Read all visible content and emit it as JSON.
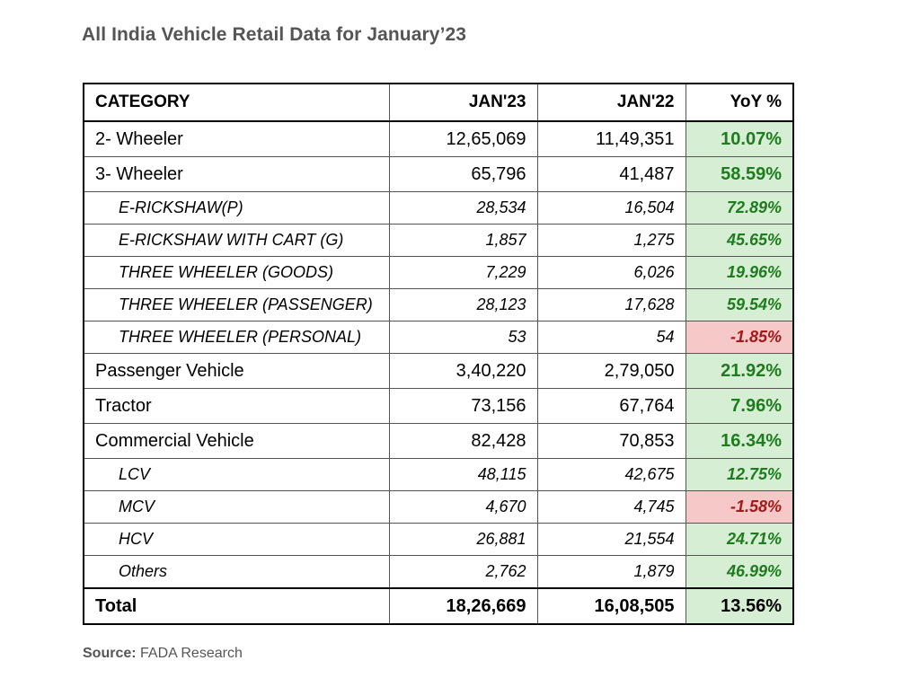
{
  "title": "All India Vehicle Retail Data for January’23",
  "header": {
    "category": "CATEGORY",
    "jan23": "JAN'23",
    "jan22": "JAN'22",
    "yoy": "YoY %"
  },
  "rows": [
    {
      "category": "2- Wheeler",
      "jan23": "12,65,069",
      "jan22": "11,49,351",
      "yoy": "10.07%"
    },
    {
      "category": "3- Wheeler",
      "jan23": "65,796",
      "jan22": "41,487",
      "yoy": "58.59%"
    },
    {
      "category": "E-RICKSHAW(P)",
      "jan23": "28,534",
      "jan22": "16,504",
      "yoy": "72.89%"
    },
    {
      "category": "E-RICKSHAW WITH CART (G)",
      "jan23": "1,857",
      "jan22": "1,275",
      "yoy": "45.65%"
    },
    {
      "category": "THREE WHEELER (GOODS)",
      "jan23": "7,229",
      "jan22": "6,026",
      "yoy": "19.96%"
    },
    {
      "category": "THREE WHEELER (PASSENGER)",
      "jan23": "28,123",
      "jan22": "17,628",
      "yoy": "59.54%"
    },
    {
      "category": "THREE WHEELER (PERSONAL)",
      "jan23": "53",
      "jan22": "54",
      "yoy": "-1.85%"
    },
    {
      "category": "Passenger Vehicle",
      "jan23": "3,40,220",
      "jan22": "2,79,050",
      "yoy": "21.92%"
    },
    {
      "category": "Tractor",
      "jan23": "73,156",
      "jan22": "67,764",
      "yoy": "7.96%"
    },
    {
      "category": "Commercial Vehicle",
      "jan23": "82,428",
      "jan22": "70,853",
      "yoy": "16.34%"
    },
    {
      "category": "LCV",
      "jan23": "48,115",
      "jan22": "42,675",
      "yoy": "12.75%"
    },
    {
      "category": "MCV",
      "jan23": "4,670",
      "jan22": "4,745",
      "yoy": "-1.58%"
    },
    {
      "category": "HCV",
      "jan23": "26,881",
      "jan22": "21,554",
      "yoy": "24.71%"
    },
    {
      "category": "Others",
      "jan23": "2,762",
      "jan22": "1,879",
      "yoy": "46.99%"
    }
  ],
  "total": {
    "category": "Total",
    "jan23": "18,26,669",
    "jan22": "16,08,505",
    "yoy": "13.56%"
  },
  "source": {
    "label": "Source:",
    "text": " FADA Research"
  },
  "colors": {
    "positive_bg": "#d6efd4",
    "positive_text": "#1e7b1e",
    "negative_bg": "#f6c8c8",
    "negative_text": "#a11a1a"
  }
}
